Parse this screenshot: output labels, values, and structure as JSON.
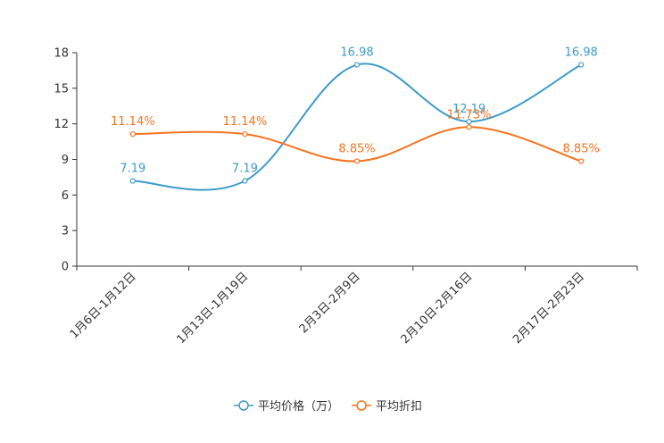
{
  "chart_data": {
    "type": "line",
    "title": "",
    "xlabel": "",
    "ylabel": "",
    "ylim": [
      0,
      18
    ],
    "yticks": [
      0,
      3,
      6,
      9,
      12,
      15,
      18
    ],
    "categories": [
      "1月6日-1月12日",
      "1月13日-1月19日",
      "2月3日-2月9日",
      "2月10日-2月16日",
      "2月17日-2月23日"
    ],
    "series": [
      {
        "name": "平均价格（万）",
        "color": "#3d9bc8",
        "values": [
          7.19,
          7.19,
          16.98,
          12.19,
          16.98
        ],
        "labels": [
          "7.19",
          "7.19",
          "16.98",
          "12.19",
          "16.98"
        ]
      },
      {
        "name": "平均折扣",
        "color": "#f5731f",
        "values": [
          11.14,
          11.14,
          8.85,
          11.73,
          8.85
        ],
        "labels": [
          "11.14%",
          "11.14%",
          "8.85%",
          "11.73%",
          "8.85%"
        ]
      }
    ],
    "legend": "bottom-center",
    "grid": false
  }
}
